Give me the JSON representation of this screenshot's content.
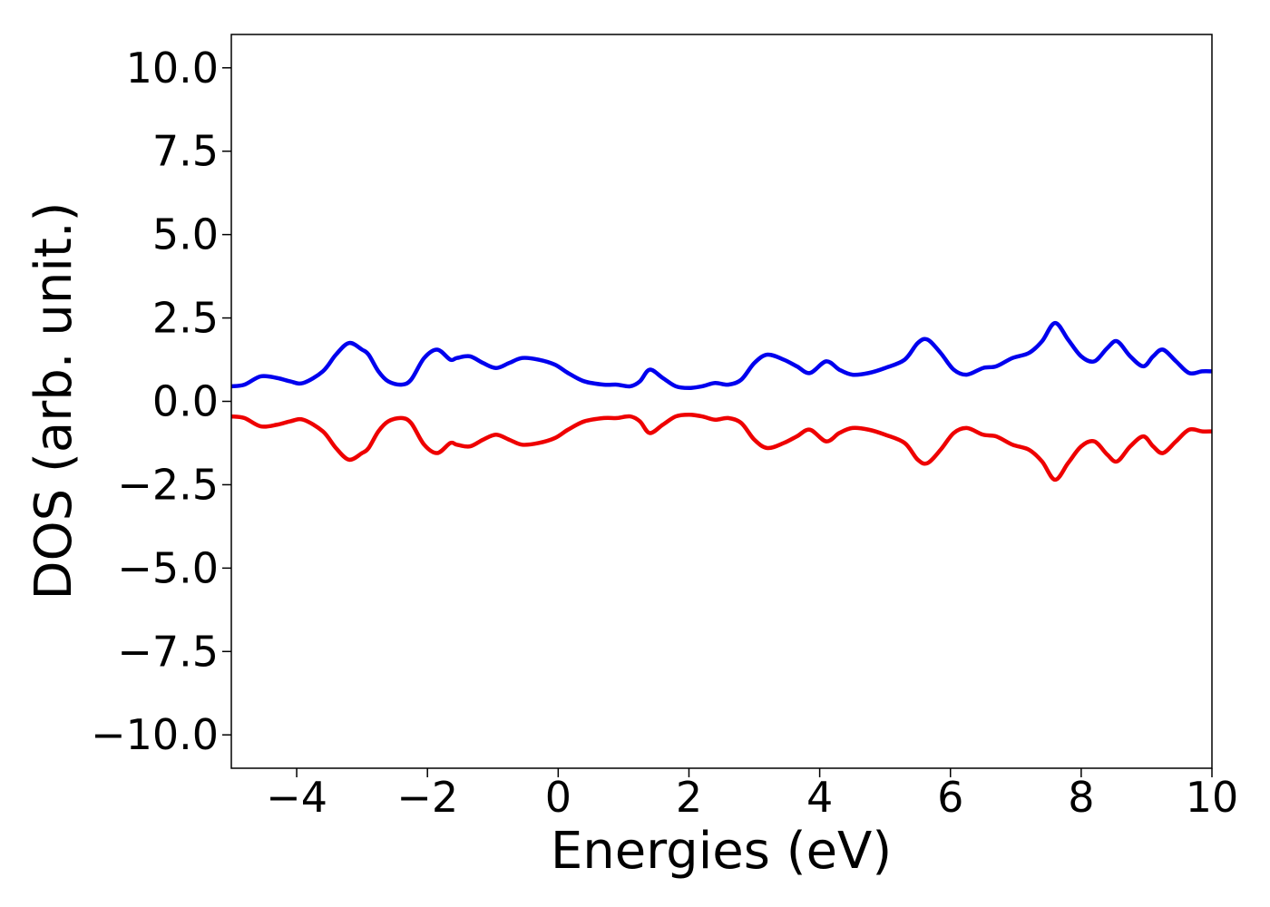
{
  "chart_data": {
    "type": "line",
    "title": "",
    "xlabel": "Energies (eV)",
    "ylabel": "DOS (arb. unit.)",
    "xlim": [
      -5,
      10
    ],
    "ylim": [
      -11,
      11
    ],
    "grid": false,
    "legend": "none",
    "x_ticks": [
      {
        "value": -4,
        "label": "−4"
      },
      {
        "value": -2,
        "label": "−2"
      },
      {
        "value": 0,
        "label": "0"
      },
      {
        "value": 2,
        "label": "2"
      },
      {
        "value": 4,
        "label": "4"
      },
      {
        "value": 6,
        "label": "6"
      },
      {
        "value": 8,
        "label": "8"
      },
      {
        "value": 10,
        "label": "10"
      }
    ],
    "y_ticks": [
      {
        "value": 10,
        "label": "10.0"
      },
      {
        "value": 7.5,
        "label": "7.5"
      },
      {
        "value": 5,
        "label": "5.0"
      },
      {
        "value": 2.5,
        "label": "2.5"
      },
      {
        "value": 0,
        "label": "0.0"
      },
      {
        "value": -2.5,
        "label": "−2.5"
      },
      {
        "value": -5,
        "label": "−5.0"
      },
      {
        "value": -7.5,
        "label": "−7.5"
      },
      {
        "value": -10,
        "label": "−10.0"
      }
    ],
    "series": [
      {
        "color": "#0000ee",
        "x": [
          -5.0,
          -4.8,
          -4.55,
          -4.3,
          -4.1,
          -3.9,
          -3.6,
          -3.4,
          -3.2,
          -3.0,
          -2.9,
          -2.75,
          -2.6,
          -2.4,
          -2.25,
          -2.05,
          -1.85,
          -1.65,
          -1.55,
          -1.35,
          -1.15,
          -0.95,
          -0.75,
          -0.55,
          -0.3,
          -0.05,
          0.15,
          0.4,
          0.7,
          0.9,
          1.1,
          1.25,
          1.4,
          1.6,
          1.8,
          2.0,
          2.2,
          2.4,
          2.6,
          2.8,
          3.0,
          3.2,
          3.45,
          3.65,
          3.85,
          4.1,
          4.3,
          4.5,
          4.75,
          5.0,
          5.3,
          5.5,
          5.65,
          5.85,
          6.05,
          6.25,
          6.5,
          6.7,
          6.95,
          7.2,
          7.4,
          7.6,
          7.8,
          8.0,
          8.2,
          8.4,
          8.55,
          8.75,
          8.95,
          9.1,
          9.25,
          9.45,
          9.65,
          9.85,
          10.0
        ],
        "values": [
          0.45,
          0.5,
          0.75,
          0.7,
          0.6,
          0.55,
          0.9,
          1.4,
          1.75,
          1.55,
          1.4,
          0.9,
          0.6,
          0.5,
          0.65,
          1.3,
          1.55,
          1.25,
          1.3,
          1.35,
          1.15,
          1.0,
          1.15,
          1.3,
          1.25,
          1.1,
          0.85,
          0.6,
          0.5,
          0.5,
          0.45,
          0.6,
          0.95,
          0.7,
          0.45,
          0.4,
          0.45,
          0.55,
          0.5,
          0.65,
          1.15,
          1.4,
          1.25,
          1.05,
          0.85,
          1.2,
          0.95,
          0.8,
          0.85,
          1.0,
          1.25,
          1.75,
          1.85,
          1.45,
          0.95,
          0.8,
          1.0,
          1.05,
          1.3,
          1.45,
          1.8,
          2.35,
          1.85,
          1.35,
          1.2,
          1.6,
          1.8,
          1.35,
          1.05,
          1.35,
          1.55,
          1.2,
          0.85,
          0.9,
          0.9
        ]
      },
      {
        "color": "#ee0000",
        "x": [
          -5.0,
          -4.8,
          -4.55,
          -4.3,
          -4.1,
          -3.9,
          -3.6,
          -3.4,
          -3.2,
          -3.0,
          -2.9,
          -2.75,
          -2.6,
          -2.4,
          -2.25,
          -2.05,
          -1.85,
          -1.65,
          -1.55,
          -1.35,
          -1.15,
          -0.95,
          -0.75,
          -0.55,
          -0.3,
          -0.05,
          0.15,
          0.4,
          0.7,
          0.9,
          1.1,
          1.25,
          1.4,
          1.6,
          1.8,
          2.0,
          2.2,
          2.4,
          2.6,
          2.8,
          3.0,
          3.2,
          3.45,
          3.65,
          3.85,
          4.1,
          4.3,
          4.5,
          4.75,
          5.0,
          5.3,
          5.5,
          5.65,
          5.85,
          6.05,
          6.25,
          6.5,
          6.7,
          6.95,
          7.2,
          7.4,
          7.6,
          7.8,
          8.0,
          8.2,
          8.4,
          8.55,
          8.75,
          8.95,
          9.1,
          9.25,
          9.45,
          9.65,
          9.85,
          10.0
        ],
        "values": [
          -0.45,
          -0.5,
          -0.75,
          -0.7,
          -0.6,
          -0.55,
          -0.9,
          -1.4,
          -1.75,
          -1.55,
          -1.4,
          -0.9,
          -0.6,
          -0.5,
          -0.65,
          -1.3,
          -1.55,
          -1.25,
          -1.3,
          -1.35,
          -1.15,
          -1.0,
          -1.15,
          -1.3,
          -1.25,
          -1.1,
          -0.85,
          -0.6,
          -0.5,
          -0.5,
          -0.45,
          -0.6,
          -0.95,
          -0.7,
          -0.45,
          -0.4,
          -0.45,
          -0.55,
          -0.5,
          -0.65,
          -1.15,
          -1.4,
          -1.25,
          -1.05,
          -0.85,
          -1.2,
          -0.95,
          -0.8,
          -0.85,
          -1.0,
          -1.25,
          -1.75,
          -1.85,
          -1.45,
          -0.95,
          -0.8,
          -1.0,
          -1.05,
          -1.3,
          -1.45,
          -1.8,
          -2.35,
          -1.85,
          -1.35,
          -1.2,
          -1.6,
          -1.8,
          -1.35,
          -1.05,
          -1.35,
          -1.55,
          -1.2,
          -0.85,
          -0.9,
          -0.9
        ]
      }
    ]
  }
}
